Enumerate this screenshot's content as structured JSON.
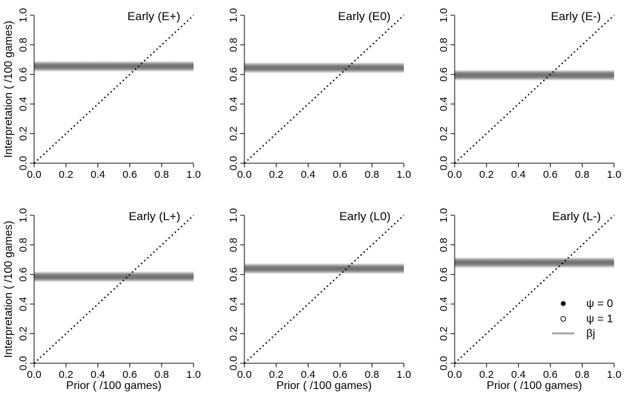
{
  "chart_data": [
    {
      "type": "line",
      "title": "Early (E+)",
      "xlabel": "",
      "ylabel": "Interpretation ( /100 games)",
      "xlim": [
        0,
        1
      ],
      "ylim": [
        0,
        1
      ],
      "xticks": [
        "0.0",
        "0.2",
        "0.4",
        "0.6",
        "0.8",
        "1.0"
      ],
      "yticks": [
        "0.0",
        "0.2",
        "0.4",
        "0.6",
        "0.8",
        "1.0"
      ],
      "series": [
        {
          "values": [
            0.0,
            1.0
          ],
          "x": [
            0.0,
            1.0
          ],
          "style": "dotted"
        },
        {
          "values": [
            0.655,
            0.655
          ],
          "x": [
            0.0,
            1.0
          ],
          "style": "band",
          "band": [
            0.635,
            0.675
          ]
        }
      ]
    },
    {
      "type": "line",
      "title": "Early (E0)",
      "xlabel": "",
      "ylabel": "",
      "xlim": [
        0,
        1
      ],
      "ylim": [
        0,
        1
      ],
      "xticks": [
        "0.0",
        "0.2",
        "0.4",
        "0.6",
        "0.8",
        "1.0"
      ],
      "yticks": [
        "0.0",
        "0.2",
        "0.4",
        "0.6",
        "0.8",
        "1.0"
      ],
      "series": [
        {
          "values": [
            0.0,
            1.0
          ],
          "x": [
            0.0,
            1.0
          ],
          "style": "dotted"
        },
        {
          "values": [
            0.645,
            0.645
          ],
          "x": [
            0.0,
            1.0
          ],
          "style": "band",
          "band": [
            0.625,
            0.665
          ]
        }
      ]
    },
    {
      "type": "line",
      "title": "Early (E-)",
      "xlabel": "",
      "ylabel": "",
      "xlim": [
        0,
        1
      ],
      "ylim": [
        0,
        1
      ],
      "xticks": [
        "0.0",
        "0.2",
        "0.4",
        "0.6",
        "0.8",
        "1.0"
      ],
      "yticks": [
        "0.0",
        "0.2",
        "0.4",
        "0.6",
        "0.8",
        "1.0"
      ],
      "series": [
        {
          "values": [
            0.0,
            1.0
          ],
          "x": [
            0.0,
            1.0
          ],
          "style": "dotted"
        },
        {
          "values": [
            0.595,
            0.595
          ],
          "x": [
            0.0,
            1.0
          ],
          "style": "band",
          "band": [
            0.575,
            0.615
          ]
        }
      ]
    },
    {
      "type": "line",
      "title": "Early (L+)",
      "xlabel": "Prior ( /100 games)",
      "ylabel": "Interpretation ( /100 games)",
      "xlim": [
        0,
        1
      ],
      "ylim": [
        0,
        1
      ],
      "xticks": [
        "0.0",
        "0.2",
        "0.4",
        "0.6",
        "0.8",
        "1.0"
      ],
      "yticks": [
        "0.0",
        "0.2",
        "0.4",
        "0.6",
        "0.8",
        "1.0"
      ],
      "series": [
        {
          "values": [
            0.0,
            1.0
          ],
          "x": [
            0.0,
            1.0
          ],
          "style": "dotted"
        },
        {
          "values": [
            0.585,
            0.585
          ],
          "x": [
            0.0,
            1.0
          ],
          "style": "band",
          "band": [
            0.565,
            0.605
          ]
        }
      ]
    },
    {
      "type": "line",
      "title": "Early (L0)",
      "xlabel": "Prior ( /100 games)",
      "ylabel": "",
      "xlim": [
        0,
        1
      ],
      "ylim": [
        0,
        1
      ],
      "xticks": [
        "0.0",
        "0.2",
        "0.4",
        "0.6",
        "0.8",
        "1.0"
      ],
      "yticks": [
        "0.0",
        "0.2",
        "0.4",
        "0.6",
        "0.8",
        "1.0"
      ],
      "series": [
        {
          "values": [
            0.0,
            1.0
          ],
          "x": [
            0.0,
            1.0
          ],
          "style": "dotted"
        },
        {
          "values": [
            0.64,
            0.64
          ],
          "x": [
            0.0,
            1.0
          ],
          "style": "band",
          "band": [
            0.62,
            0.66
          ]
        }
      ]
    },
    {
      "type": "line",
      "title": "Early (L-)",
      "xlabel": "Prior ( /100 games)",
      "ylabel": "",
      "xlim": [
        0,
        1
      ],
      "ylim": [
        0,
        1
      ],
      "xticks": [
        "0.0",
        "0.2",
        "0.4",
        "0.6",
        "0.8",
        "1.0"
      ],
      "yticks": [
        "0.0",
        "0.2",
        "0.4",
        "0.6",
        "0.8",
        "1.0"
      ],
      "series": [
        {
          "values": [
            0.0,
            1.0
          ],
          "x": [
            0.0,
            1.0
          ],
          "style": "dotted"
        },
        {
          "values": [
            0.68,
            0.68
          ],
          "x": [
            0.0,
            1.0
          ],
          "style": "band",
          "band": [
            0.66,
            0.7
          ]
        }
      ]
    }
  ],
  "legend": {
    "placement": "bottom-right of last panel",
    "items": [
      {
        "label": "ψ = 0",
        "marker": "filled-circle"
      },
      {
        "label": "ψ = 1",
        "marker": "open-circle"
      },
      {
        "label": "βj",
        "marker": "gray-line"
      }
    ]
  },
  "colors": {
    "band": "#6e6e6e",
    "identity": "#000000",
    "axis": "#000000",
    "legend_line": "#aaaaaa"
  }
}
